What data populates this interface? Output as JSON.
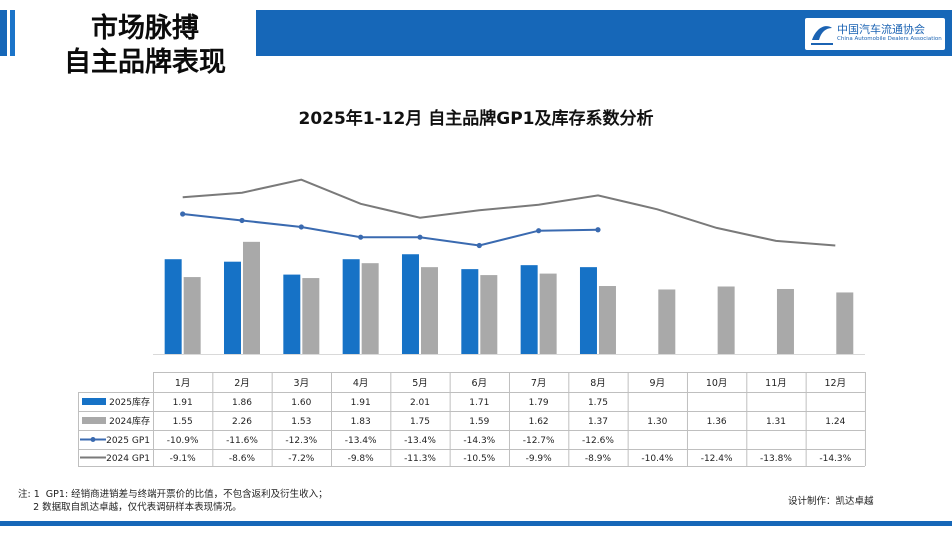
{
  "header": {
    "title_line1": "市场脉搏",
    "title_line2": "自主品牌表现",
    "logo_cn": "中国汽车流通协会",
    "logo_en": "China Automobile Dealers Association"
  },
  "colors": {
    "blue": "#1672c6",
    "gray": "#a9a9a9",
    "line_blue": "#3a6ab0",
    "line_gray": "#7a7a7a",
    "band": "#1667b8"
  },
  "chart_data": {
    "type": "bar",
    "title": "2025年1-12月 自主品牌GP1及库存系数分析",
    "categories": [
      "1月",
      "2月",
      "3月",
      "4月",
      "5月",
      "6月",
      "7月",
      "8月",
      "9月",
      "10月",
      "11月",
      "12月"
    ],
    "series": [
      {
        "name": "2025库存",
        "type": "bar",
        "values": [
          1.91,
          1.86,
          1.6,
          1.91,
          2.01,
          1.71,
          1.79,
          1.75,
          null,
          null,
          null,
          null
        ],
        "labels": [
          "1.91",
          "1.86",
          "1.60",
          "1.91",
          "2.01",
          "1.71",
          "1.79",
          "1.75",
          "",
          "",
          "",
          ""
        ]
      },
      {
        "name": "2024库存",
        "type": "bar",
        "values": [
          1.55,
          2.26,
          1.53,
          1.83,
          1.75,
          1.59,
          1.62,
          1.37,
          1.3,
          1.36,
          1.31,
          1.24
        ],
        "labels": [
          "1.55",
          "2.26",
          "1.53",
          "1.83",
          "1.75",
          "1.59",
          "1.62",
          "1.37",
          "1.30",
          "1.36",
          "1.31",
          "1.24"
        ]
      },
      {
        "name": "2025 GP1",
        "type": "line",
        "values": [
          -10.9,
          -11.6,
          -12.3,
          -13.4,
          -13.4,
          -14.3,
          -12.7,
          -12.6,
          null,
          null,
          null,
          null
        ],
        "labels": [
          "-10.9%",
          "-11.6%",
          "-12.3%",
          "-13.4%",
          "-13.4%",
          "-14.3%",
          "-12.7%",
          "-12.6%",
          "",
          "",
          "",
          ""
        ]
      },
      {
        "name": "2024 GP1",
        "type": "line",
        "values": [
          -9.1,
          -8.6,
          -7.2,
          -9.8,
          -11.3,
          -10.5,
          -9.9,
          -8.9,
          -10.4,
          -12.4,
          -13.8,
          -14.3
        ],
        "labels": [
          "-9.1%",
          "-8.6%",
          "-7.2%",
          "-9.8%",
          "-11.3%",
          "-10.5%",
          "-9.9%",
          "-8.9%",
          "-10.4%",
          "-12.4%",
          "-13.8%",
          "-14.3%"
        ]
      }
    ],
    "bar_axis_max": 2.7,
    "line_axis_range": [
      -26,
      -4
    ],
    "grid": false,
    "legend_placement": "data-table-left"
  },
  "footer": {
    "note": "注: 1  GP1: 经销商进销差与终端开票价的比值，不包含返利及衍生收入；\n     2 数据取自凯达卓越，仅代表调研样本表现情况。",
    "designer": "设计制作：凯达卓越"
  }
}
